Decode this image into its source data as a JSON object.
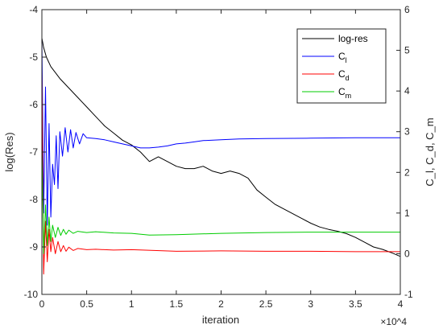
{
  "chart_data": {
    "type": "line",
    "xlabel": "iteration",
    "x_multiplier": "×10^4",
    "ylabel_left": "log(Res)",
    "ylabel_right": "C_l, C_d, C_m",
    "xlim": [
      0,
      4
    ],
    "ylim_left": [
      -10,
      -4
    ],
    "ylim_right": [
      -1,
      6
    ],
    "x_ticks": [
      "0",
      "0.5",
      "1",
      "1.5",
      "2",
      "2.5",
      "3",
      "3.5",
      "4"
    ],
    "y_ticks_left": [
      "-10",
      "-9",
      "-8",
      "-7",
      "-6",
      "-5",
      "-4"
    ],
    "y_ticks_right": [
      "-1",
      "0",
      "1",
      "2",
      "3",
      "4",
      "5",
      "6"
    ],
    "legend_position": "top-right",
    "grid": false,
    "series": [
      {
        "name": "log-res",
        "legend_base": "log-res",
        "legend_sub": "",
        "axis": "left",
        "color": "#000000",
        "x": [
          0,
          0.02,
          0.05,
          0.1,
          0.2,
          0.3,
          0.4,
          0.5,
          0.6,
          0.7,
          0.8,
          0.9,
          1.0,
          1.1,
          1.2,
          1.3,
          1.4,
          1.5,
          1.6,
          1.7,
          1.8,
          1.9,
          2.0,
          2.1,
          2.2,
          2.3,
          2.4,
          2.5,
          2.6,
          2.7,
          2.8,
          2.9,
          3.0,
          3.1,
          3.2,
          3.3,
          3.4,
          3.5,
          3.6,
          3.7,
          3.8,
          3.9,
          4.0
        ],
        "y": [
          -4.6,
          -4.8,
          -5.0,
          -5.2,
          -5.45,
          -5.65,
          -5.85,
          -6.05,
          -6.25,
          -6.45,
          -6.6,
          -6.75,
          -6.85,
          -7.0,
          -7.2,
          -7.1,
          -7.2,
          -7.3,
          -7.35,
          -7.35,
          -7.3,
          -7.4,
          -7.45,
          -7.4,
          -7.45,
          -7.55,
          -7.8,
          -7.95,
          -8.1,
          -8.2,
          -8.3,
          -8.4,
          -8.5,
          -8.58,
          -8.63,
          -8.67,
          -8.72,
          -8.8,
          -8.9,
          -9.0,
          -9.05,
          -9.12,
          -9.2
        ]
      },
      {
        "name": "C_l",
        "legend_base": "C",
        "legend_sub": "l",
        "axis": "right",
        "color": "#0000ff",
        "x": [
          0,
          0.02,
          0.04,
          0.06,
          0.08,
          0.1,
          0.12,
          0.14,
          0.16,
          0.18,
          0.2,
          0.23,
          0.26,
          0.29,
          0.32,
          0.35,
          0.38,
          0.42,
          0.46,
          0.5,
          0.6,
          0.7,
          0.8,
          0.9,
          1.0,
          1.1,
          1.2,
          1.3,
          1.4,
          1.5,
          1.6,
          1.7,
          1.8,
          2.0,
          2.2,
          2.5,
          3.0,
          3.5,
          4.0
        ],
        "y": [
          5.3,
          1.0,
          4.1,
          0.7,
          3.2,
          0.9,
          2.2,
          1.7,
          2.9,
          1.6,
          3.0,
          2.4,
          3.1,
          2.5,
          3.05,
          2.6,
          2.98,
          2.7,
          2.95,
          2.85,
          2.83,
          2.8,
          2.75,
          2.7,
          2.65,
          2.6,
          2.6,
          2.62,
          2.65,
          2.7,
          2.72,
          2.75,
          2.78,
          2.8,
          2.82,
          2.83,
          2.84,
          2.85,
          2.85
        ]
      },
      {
        "name": "C_d",
        "legend_base": "C",
        "legend_sub": "d",
        "axis": "right",
        "color": "#ff0000",
        "x": [
          0,
          0.02,
          0.04,
          0.06,
          0.08,
          0.1,
          0.12,
          0.15,
          0.18,
          0.21,
          0.24,
          0.27,
          0.3,
          0.35,
          0.4,
          0.5,
          0.6,
          0.8,
          1.0,
          1.5,
          2.0,
          2.5,
          3.0,
          3.5,
          4.0
        ],
        "y": [
          4.5,
          -0.5,
          0.8,
          -0.2,
          0.6,
          0.05,
          0.4,
          0.0,
          0.3,
          0.05,
          0.2,
          0.06,
          0.16,
          0.08,
          0.13,
          0.1,
          0.11,
          0.09,
          0.1,
          0.06,
          0.07,
          0.06,
          0.06,
          0.05,
          0.05
        ]
      },
      {
        "name": "C_m",
        "legend_base": "C",
        "legend_sub": "m",
        "axis": "right",
        "color": "#00cc00",
        "x": [
          0,
          0.02,
          0.04,
          0.06,
          0.08,
          0.1,
          0.12,
          0.15,
          0.18,
          0.21,
          0.24,
          0.27,
          0.3,
          0.35,
          0.4,
          0.5,
          0.6,
          0.8,
          1.0,
          1.2,
          1.5,
          2.0,
          2.5,
          3.0,
          3.5,
          4.0
        ],
        "y": [
          2.6,
          0.0,
          1.2,
          0.2,
          0.9,
          0.3,
          0.7,
          0.4,
          0.65,
          0.45,
          0.6,
          0.48,
          0.58,
          0.5,
          0.55,
          0.52,
          0.54,
          0.51,
          0.5,
          0.46,
          0.47,
          0.5,
          0.52,
          0.53,
          0.53,
          0.53
        ]
      }
    ]
  }
}
